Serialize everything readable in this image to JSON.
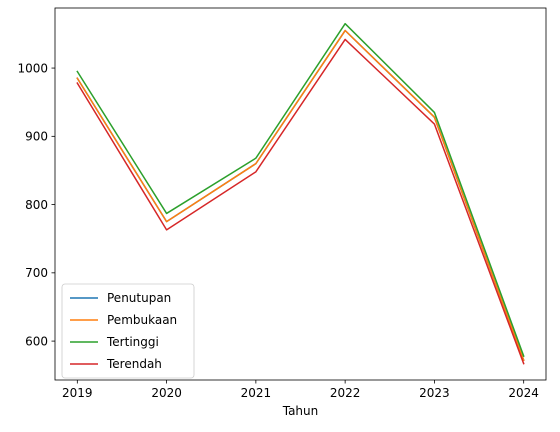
{
  "chart_data": {
    "type": "line",
    "x": [
      2019,
      2020,
      2021,
      2022,
      2023,
      2024
    ],
    "xtick_labels": [
      "2019",
      "2020",
      "2021",
      "2022",
      "2023",
      "2024"
    ],
    "xlabel": "Tahun",
    "ylabel": "",
    "title": "",
    "yticks": [
      600,
      700,
      800,
      900,
      1000
    ],
    "ytick_labels": [
      "600",
      "700",
      "800",
      "900",
      "1000"
    ],
    "ylim": [
      543,
      1088
    ],
    "xlim": [
      2018.75,
      2024.25
    ],
    "grid": false,
    "legend_position": "lower-left",
    "series": [
      {
        "name": "Penutupan",
        "color": "#1f77b4",
        "values": [
          985,
          775,
          860,
          1055,
          928,
          572
        ]
      },
      {
        "name": "Pembukaan",
        "color": "#ff7f0e",
        "values": [
          985,
          775,
          860,
          1055,
          928,
          572
        ]
      },
      {
        "name": "Tertinggi",
        "color": "#2ca02c",
        "values": [
          995,
          787,
          868,
          1065,
          935,
          578
        ]
      },
      {
        "name": "Terendah",
        "color": "#d62728",
        "values": [
          978,
          763,
          848,
          1042,
          918,
          567
        ]
      }
    ]
  }
}
